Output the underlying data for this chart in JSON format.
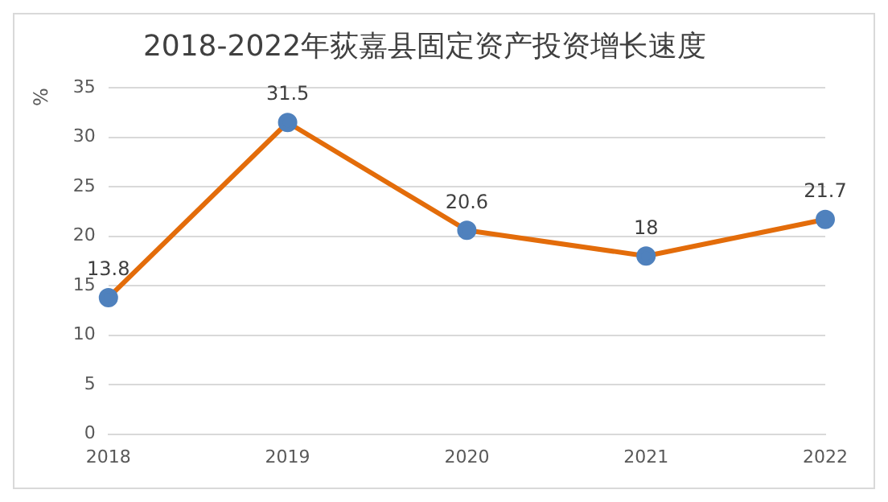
{
  "chart_data": {
    "type": "line",
    "title": "2018-2022年荻嘉县固定资产投资增长速度",
    "ylabel": "%",
    "categories": [
      "2018",
      "2019",
      "2020",
      "2021",
      "2022"
    ],
    "series": [
      {
        "color": "#e36c0a",
        "colors": [
          "#4f81bd",
          "#4f81bd",
          "#4f81bd",
          "#4f81bd",
          "#4f81bd"
        ],
        "values": [
          13.8,
          31.5,
          20.6,
          18,
          21.7
        ]
      }
    ],
    "ylim": [
      0,
      35
    ],
    "yticks": [
      0,
      5,
      10,
      15,
      20,
      25,
      30,
      35
    ],
    "grid": "y",
    "legend": false,
    "marker": "circle",
    "line_style": "solid",
    "data_labels": true
  }
}
